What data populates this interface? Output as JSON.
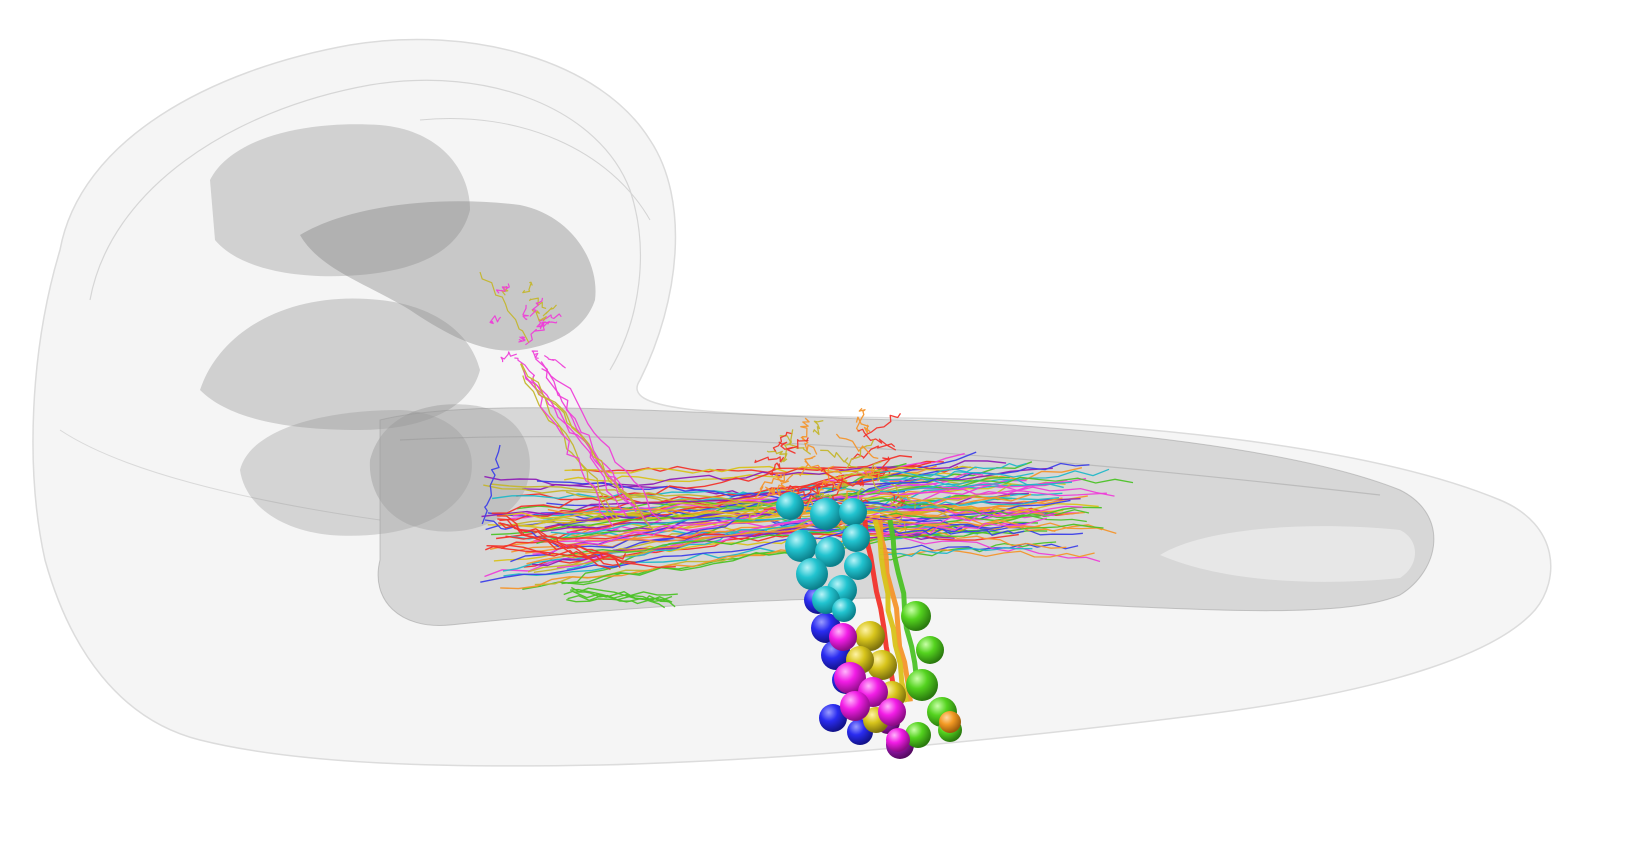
{
  "scene": {
    "background": "#ffffff",
    "meshes": [
      {
        "name": "outer-brain-mesh",
        "color": "#e6e6e6"
      },
      {
        "name": "inner-neuropil-mesh",
        "color": "#9a9a9a"
      },
      {
        "name": "posterior-tract-mesh",
        "color": "#b4b4b4"
      }
    ],
    "neuron_colors": {
      "red": "#f2332b",
      "magenta": "#ee3fd8",
      "cyan": "#22b8c8",
      "orange": "#f4952b",
      "green": "#4cc227",
      "blue": "#3c3fe8",
      "olive": "#c4b62d",
      "purple": "#8f1fb6",
      "yellow": "#d8c21a"
    },
    "soma_colors": {
      "cyan": "#1fc3cf",
      "blue": "#2a2cf0",
      "magenta": "#f21de6",
      "yellow": "#d8c51c",
      "green": "#54d31f",
      "purple": "#a017b5",
      "orange": "#f39a24"
    }
  }
}
